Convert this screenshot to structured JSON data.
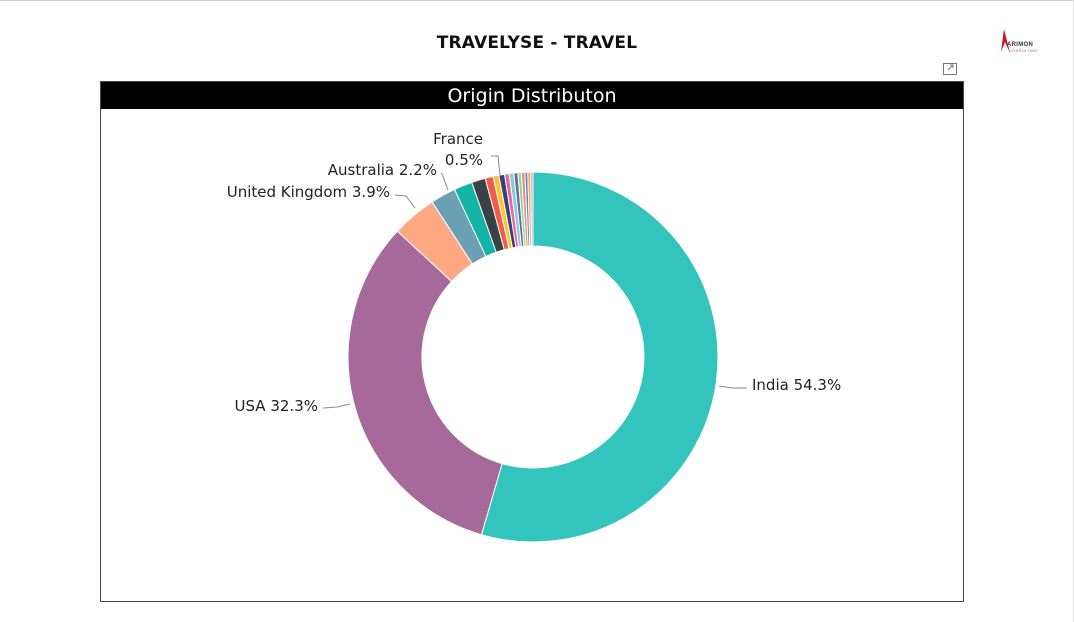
{
  "report": {
    "title": "TRAVELYSE - TRAVEL"
  },
  "logo": {
    "name": "ARIMON",
    "tagline": "CONSULTING",
    "accent": "#d0121b"
  },
  "visual": {
    "header": "Origin Distributon"
  },
  "chart_data": {
    "type": "pie",
    "variant": "donut",
    "title": "Origin Distributon",
    "legend": "none",
    "slices": [
      {
        "label": "India",
        "value": 54.3,
        "display": "India 54.3%",
        "color": "#33c5bd",
        "labeled": true
      },
      {
        "label": "USA",
        "value": 32.3,
        "display": "USA 32.3%",
        "color": "#a66999",
        "labeled": true
      },
      {
        "label": "United Kingdom",
        "value": 3.9,
        "display": "United Kingdom 3.9%",
        "color": "#fea883",
        "labeled": true
      },
      {
        "label": "Australia",
        "value": 2.2,
        "display": "Australia 2.2%",
        "color": "#6aa0b2",
        "labeled": true
      },
      {
        "label": "",
        "value": 1.6,
        "color": "#12b5a5",
        "labeled": false
      },
      {
        "label": "",
        "value": 1.2,
        "color": "#3b4145",
        "labeled": false
      },
      {
        "label": "",
        "value": 0.7,
        "color": "#f25c4c",
        "labeled": false
      },
      {
        "label": "",
        "value": 0.5,
        "color": "#f9c631",
        "labeled": false
      },
      {
        "label": "France",
        "value": 0.5,
        "display": "France 0.5%",
        "color": "#3a3f7c",
        "labeled": true
      },
      {
        "label": "",
        "value": 0.4,
        "color": "#e26b9a",
        "labeled": false
      },
      {
        "label": "",
        "value": 0.4,
        "color": "#8ac9d8",
        "labeled": false
      },
      {
        "label": "",
        "value": 0.35,
        "color": "#5b6fa8",
        "labeled": false
      },
      {
        "label": "",
        "value": 0.3,
        "color": "#a8d08d",
        "labeled": false
      },
      {
        "label": "",
        "value": 0.3,
        "color": "#d39b7b",
        "labeled": false
      },
      {
        "label": "",
        "value": 0.25,
        "color": "#7a7acb",
        "labeled": false
      },
      {
        "label": "",
        "value": 0.25,
        "color": "#f3a65a",
        "labeled": false
      },
      {
        "label": "",
        "value": 0.2,
        "color": "#c1a2ce",
        "labeled": false
      }
    ]
  }
}
